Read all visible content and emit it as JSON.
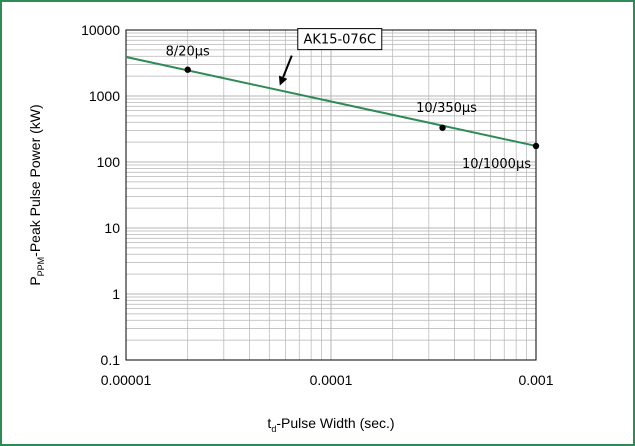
{
  "chart_data": {
    "type": "line",
    "title": "",
    "xlabel": {
      "main": "t",
      "sub": "d",
      "rest": "-Pulse Width (sec.)"
    },
    "ylabel": {
      "main": "P",
      "sub": "PPM",
      "rest": "-Peak Pulse Power (kW)"
    },
    "x_scale": "log",
    "y_scale": "log",
    "xlim": [
      1e-05,
      0.001
    ],
    "ylim": [
      0.1,
      10000
    ],
    "x_ticks": [
      {
        "value": 1e-05,
        "label": "0.00001"
      },
      {
        "value": 0.0001,
        "label": "0.0001"
      },
      {
        "value": 0.001,
        "label": "0.001"
      }
    ],
    "y_ticks": [
      {
        "value": 0.1,
        "label": "0.1"
      },
      {
        "value": 1,
        "label": "1"
      },
      {
        "value": 10,
        "label": "10"
      },
      {
        "value": 100,
        "label": "100"
      },
      {
        "value": 1000,
        "label": "1000"
      },
      {
        "value": 10000,
        "label": "10000"
      }
    ],
    "grid": true,
    "series": [
      {
        "name": "AK15-076C",
        "color": "#2e8b57",
        "x": [
          1e-05,
          0.001
        ],
        "y": [
          3900,
          175
        ]
      }
    ],
    "points": [
      {
        "x": 2e-05,
        "y": 2500,
        "label": "8/20µs"
      },
      {
        "x": 0.00035,
        "y": 330,
        "label": "10/350µs"
      },
      {
        "x": 0.001,
        "y": 175,
        "label": "10/1000µs"
      }
    ],
    "callout": {
      "text": "AK15-076C",
      "x": 5.5e-05,
      "y": 1250
    }
  },
  "colors": {
    "frame": "#2e8b57",
    "line": "#2e8b57",
    "grid": "#b5b5b5",
    "axis": "#000000"
  }
}
